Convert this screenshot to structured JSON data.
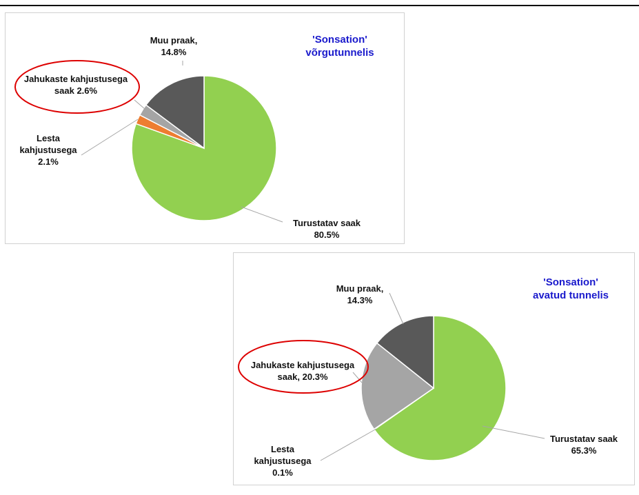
{
  "chart_data": [
    {
      "type": "pie",
      "title": "'Sonsation' võrgutunnelis",
      "categories": [
        "Turustatav saak",
        "Lesta kahjustusega",
        "Jahukaste kahjustusega saak",
        "Muu praak,"
      ],
      "values": [
        80.5,
        2.1,
        2.6,
        14.8
      ],
      "value_labels": [
        "80.5%",
        "2.1%",
        "2.6%",
        "14.8%"
      ],
      "colors": [
        "#92d050",
        "#ed7d31",
        "#a5a5a5",
        "#595959"
      ]
    },
    {
      "type": "pie",
      "title": "'Sonsation' avatud tunnelis",
      "categories": [
        "Turustatav saak",
        "Lesta kahjustusega",
        "Jahukaste kahjustusega saak,",
        "Muu praak,"
      ],
      "values": [
        65.3,
        0.1,
        20.3,
        14.3
      ],
      "value_labels": [
        "65.3%",
        "0.1%",
        "20.3%",
        "14.3%"
      ],
      "colors": [
        "#92d050",
        "#ed7d31",
        "#a5a5a5",
        "#595959"
      ]
    }
  ]
}
